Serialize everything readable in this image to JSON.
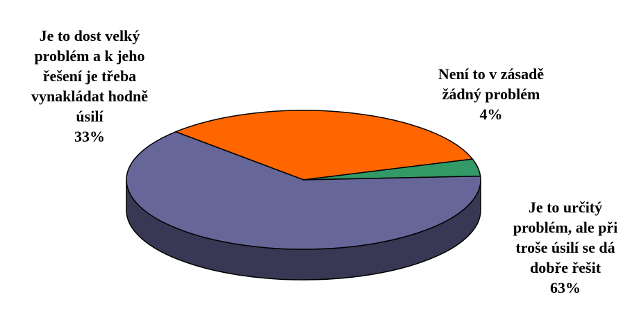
{
  "chart_data": {
    "type": "pie",
    "style": "3d",
    "slices": [
      {
        "label": "Je to dost velký\nproblém a k jeho\nřešení je třeba\nvynakládat hodně\núsilí",
        "value": 33,
        "value_label": "33%",
        "color": "#ff6600"
      },
      {
        "label": "Není to v zásadě\nžádný problém",
        "value": 4,
        "value_label": "4%",
        "color": "#339966"
      },
      {
        "label": "Je to určitý\nproblém, ale při\ntroše úsilí se dá\ndobře řešit",
        "value": 63,
        "value_label": "63%",
        "color": "#666699"
      }
    ]
  }
}
